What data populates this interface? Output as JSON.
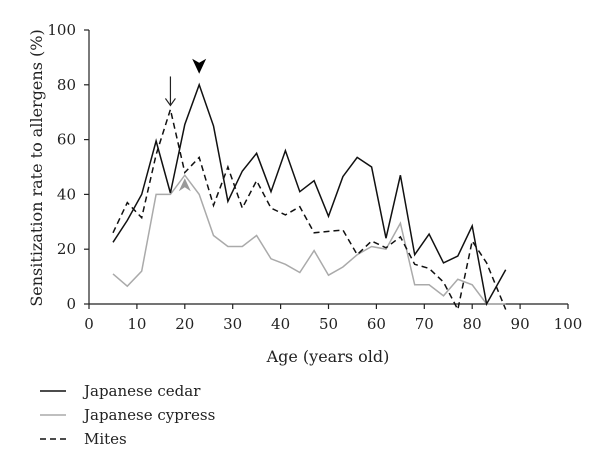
{
  "chart_data": {
    "type": "line",
    "xlabel": "Age (years old)",
    "ylabel": "Sensitization rate to allergens (%)",
    "xlim": [
      0,
      100
    ],
    "ylim": [
      0,
      100
    ],
    "xticks": [
      0,
      10,
      20,
      30,
      40,
      50,
      60,
      70,
      80,
      90,
      100
    ],
    "yticks": [
      0,
      20,
      40,
      60,
      80,
      100
    ],
    "grid": false,
    "legend_position": "bottom-left",
    "series": [
      {
        "name": "Japanese cedar",
        "color": "#111111",
        "dash": "solid",
        "x": [
          5,
          8,
          11,
          14,
          17,
          20,
          23,
          26,
          29,
          32,
          35,
          38,
          41,
          44,
          47,
          50,
          53,
          56,
          59,
          62,
          65,
          68,
          71,
          74,
          77,
          80,
          83,
          87
        ],
        "y": [
          22.5,
          30.5,
          40,
          59.5,
          40.5,
          65.5,
          80,
          65,
          37.5,
          48.5,
          55,
          41,
          56,
          41,
          45,
          32,
          46.5,
          53.5,
          50,
          24,
          47,
          18,
          25.5,
          15,
          17.5,
          28.5,
          0,
          12.5
        ]
      },
      {
        "name": "Japanese cypress",
        "color": "#aaaaaa",
        "dash": "solid",
        "x": [
          5,
          8,
          11,
          14,
          17,
          20,
          23,
          26,
          29,
          32,
          35,
          38,
          41,
          44,
          47,
          50,
          53,
          56,
          59,
          62,
          65,
          68,
          71,
          74,
          77,
          80,
          83,
          87
        ],
        "y": [
          11,
          6.5,
          12,
          40,
          40,
          47,
          40,
          25,
          21,
          21,
          25,
          16.5,
          14.5,
          11.5,
          19.5,
          10.5,
          13.5,
          18,
          21,
          20,
          29.5,
          7,
          7,
          3,
          9,
          7,
          0,
          0
        ]
      },
      {
        "name": "Mites",
        "color": "#111111",
        "dash": "dashed",
        "x": [
          5,
          8,
          11,
          14,
          17,
          20,
          23,
          26,
          29,
          32,
          35,
          38,
          41,
          44,
          47,
          50,
          53,
          56,
          59,
          62,
          65,
          68,
          71,
          74,
          77,
          80,
          83,
          87
        ],
        "y": [
          26,
          37,
          31.5,
          54.5,
          71,
          48,
          53.5,
          36,
          50,
          35,
          45,
          35,
          32.5,
          35.5,
          26,
          26.5,
          27,
          18,
          23,
          20.5,
          24.5,
          14.5,
          13,
          8,
          -2,
          23,
          15,
          -2
        ]
      }
    ],
    "annotations": [
      {
        "type": "thin-down-arrow",
        "series": "Mites",
        "x": 17,
        "y": 71,
        "color": "#222222"
      },
      {
        "type": "filled-down-arrowhead",
        "series": "Japanese cedar",
        "x": 23,
        "y": 80,
        "color": "#000000"
      },
      {
        "type": "filled-up-arrowhead",
        "series": "Japanese cypress",
        "x": 20,
        "y": 47,
        "color": "#999999"
      }
    ]
  }
}
